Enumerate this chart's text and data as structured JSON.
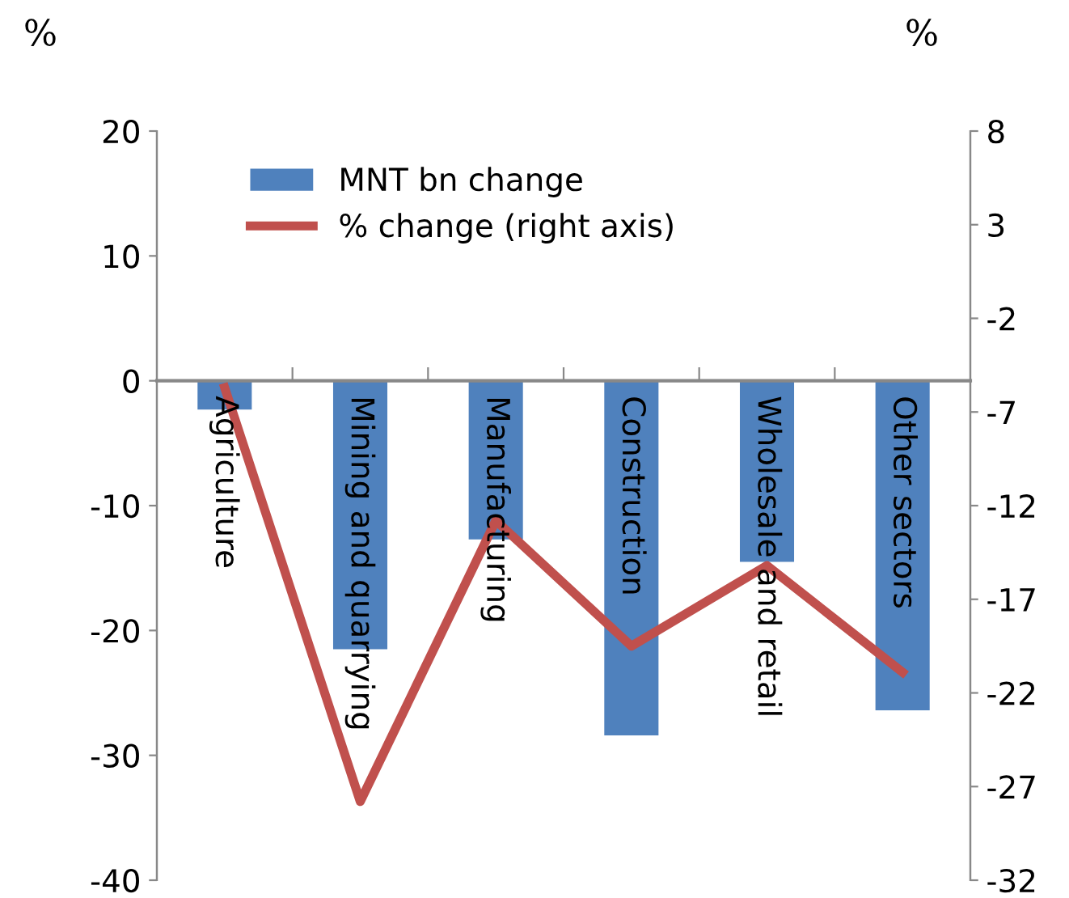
{
  "chart_data": {
    "type": "bar",
    "ylabel": "%",
    "y2label": "%",
    "categories": [
      "Agriculture",
      "Mining and quarrying",
      "Manufacturing",
      "Construction",
      "Wholesale and retail",
      "Other sectors"
    ],
    "series": [
      {
        "name": "MNT bn change",
        "color": "#4f81bd",
        "values": [
          -2.3,
          -21.5,
          -12.7,
          -28.4,
          -14.5,
          -26.4
        ]
      },
      {
        "name": "% change (right axis)",
        "type": "line",
        "axis": "y2",
        "color": "#c0504d",
        "values": [
          -5.7,
          -27.8,
          -12.8,
          -19.5,
          -15.2,
          -20.9
        ]
      }
    ],
    "ylim": [
      -40,
      20
    ],
    "yticks": [
      -40,
      -30,
      -20,
      -10,
      0,
      10,
      20
    ],
    "y2lim": [
      -32,
      8
    ],
    "y2ticks": [
      -32,
      -27,
      -22,
      -17,
      -12,
      -7,
      -2,
      3,
      8
    ],
    "grid": false,
    "legend": "top left",
    "marker": "none"
  }
}
